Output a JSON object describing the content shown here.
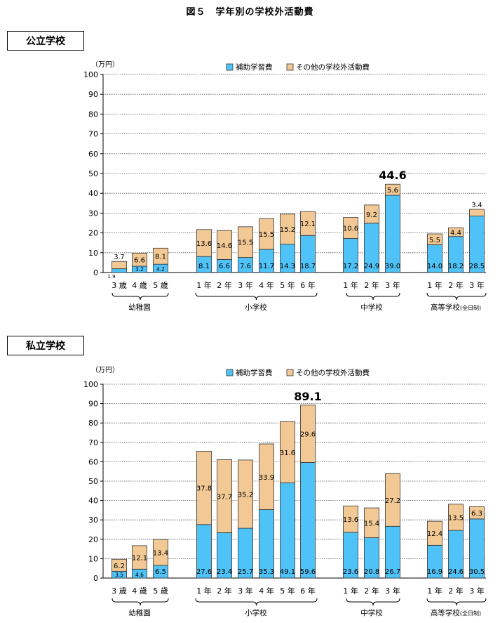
{
  "figure_title": "図５　学年別の学校外活動費",
  "sections": [
    {
      "label": "公立学校"
    },
    {
      "label": "私立学校"
    }
  ],
  "colors": {
    "hojo": "#4FC3F7",
    "other": "#F2C994",
    "stroke": "#333333"
  },
  "chart_data": [
    {
      "type": "bar",
      "stacked": true,
      "title": "公立学校",
      "unit": "（万円）",
      "ylim": [
        0,
        100
      ],
      "yticks": [
        "0",
        "10",
        "20",
        "30",
        "40",
        "50",
        "60",
        "70",
        "80",
        "90",
        "100"
      ],
      "legend": [
        "補助学習費",
        "その他の学校外活動費"
      ],
      "categories": [
        "3 歳",
        "4 歳",
        "5 歳",
        "1 年",
        "2 年",
        "3 年",
        "4 年",
        "5 年",
        "6 年",
        "1 年",
        "2 年",
        "3 年",
        "1 年",
        "2 年",
        "3 年"
      ],
      "groups": [
        "幼稚園",
        "小学校",
        "中学校",
        "高等学校(全日制)"
      ],
      "series": [
        {
          "name": "補助学習費",
          "values": [
            1.9,
            3.2,
            4.2,
            8.1,
            6.6,
            7.6,
            11.7,
            14.3,
            18.7,
            17.2,
            24.9,
            39.0,
            14.0,
            18.2,
            28.5
          ],
          "labels": [
            "1.9",
            "3.2",
            "4.2",
            "8.1",
            "6.6",
            "7.6",
            "11.7",
            "14.3",
            "18.7",
            "17.2",
            "24.9",
            "39.0",
            "14.0",
            "18.2",
            "28.5"
          ]
        },
        {
          "name": "その他の学校外活動費",
          "values": [
            3.7,
            6.6,
            8.1,
            13.6,
            14.6,
            15.5,
            15.5,
            15.2,
            12.1,
            10.6,
            9.2,
            5.6,
            5.5,
            4.4,
            3.4
          ],
          "labels": [
            "3.7",
            "6.6",
            "8.1",
            "13.6",
            "14.6",
            "15.5",
            "15.5",
            "15.2",
            "12.1",
            "10.6",
            "9.2",
            "5.6",
            "5.5",
            "4.4",
            "3.4"
          ]
        }
      ],
      "annotation": {
        "index": 11,
        "text": "44.6"
      }
    },
    {
      "type": "bar",
      "stacked": true,
      "title": "私立学校",
      "unit": "（万円）",
      "ylim": [
        0,
        100
      ],
      "yticks": [
        "0",
        "10",
        "20",
        "30",
        "40",
        "50",
        "60",
        "70",
        "80",
        "90",
        "100"
      ],
      "legend": [
        "補助学習費",
        "その他の学校外活動費"
      ],
      "categories": [
        "3 歳",
        "4 歳",
        "5 歳",
        "1 年",
        "2 年",
        "3 年",
        "4 年",
        "5 年",
        "6 年",
        "1 年",
        "2 年",
        "3 年",
        "1 年",
        "2 年",
        "3 年"
      ],
      "groups": [
        "幼稚園",
        "小学校",
        "中学校",
        "高等学校(全日制)"
      ],
      "series": [
        {
          "name": "補助学習費",
          "values": [
            3.5,
            4.6,
            6.5,
            27.6,
            23.4,
            25.7,
            35.3,
            49.1,
            59.6,
            23.6,
            20.8,
            26.7,
            16.9,
            24.6,
            30.5
          ],
          "labels": [
            "3.5",
            "4.6",
            "6.5",
            "27.6",
            "23.4",
            "25.7",
            "35.3",
            "49.1",
            "59.6",
            "23.6",
            "20.8",
            "26.7",
            "16.9",
            "24.6",
            "30.5"
          ]
        },
        {
          "name": "その他の学校外活動費",
          "values": [
            6.2,
            12.1,
            13.4,
            37.8,
            37.7,
            35.2,
            33.9,
            31.6,
            29.6,
            13.6,
            15.4,
            27.2,
            12.4,
            13.5,
            6.3
          ],
          "labels": [
            "6.2",
            "12.1",
            "13.4",
            "37.8",
            "37.7",
            "35.2",
            "33.9",
            "31.6",
            "29.6",
            "13.6",
            "15.4",
            "27.2",
            "12.4",
            "13.5",
            "6.3"
          ]
        }
      ],
      "annotation": {
        "index": 8,
        "text": "89.1"
      }
    }
  ]
}
